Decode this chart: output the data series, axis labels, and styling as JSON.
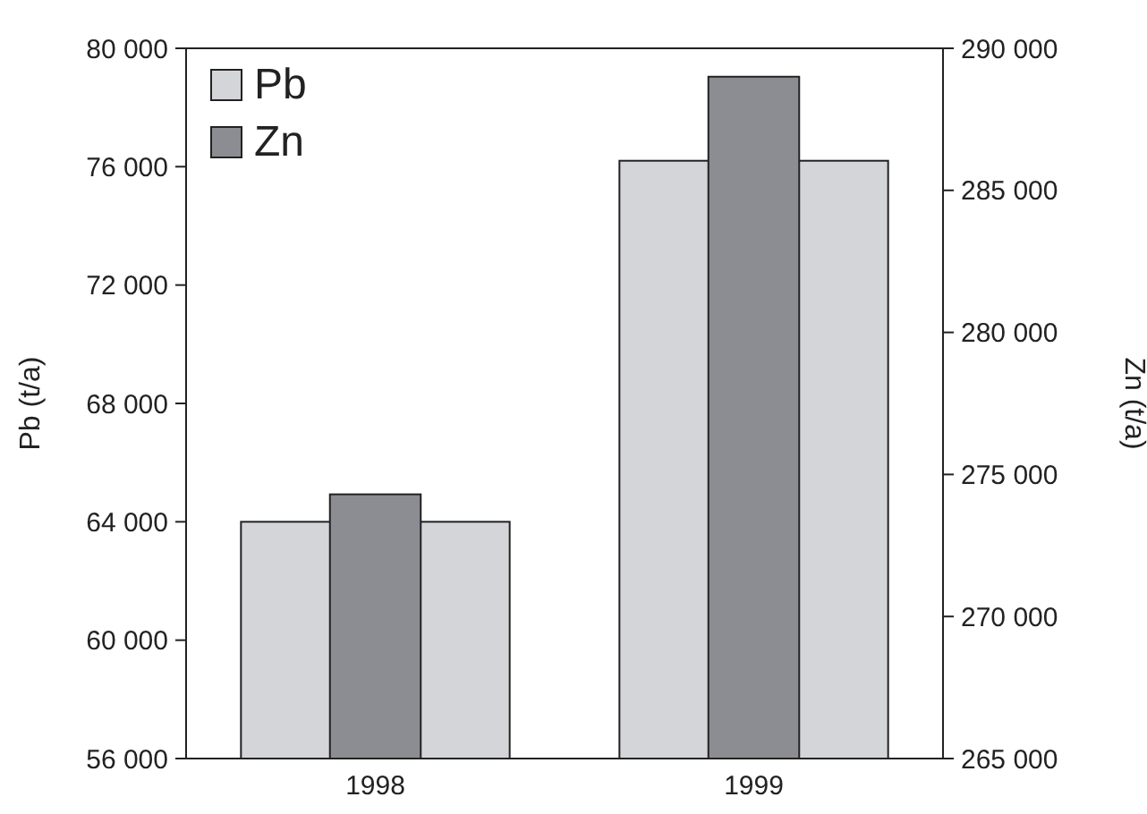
{
  "chart_data": {
    "type": "bar",
    "categories": [
      "1998",
      "1999"
    ],
    "series": [
      {
        "name": "Pb",
        "color": "#d4d5d9",
        "values": [
          64000,
          76200
        ]
      },
      {
        "name": "Zn",
        "color": "#8c8d92",
        "values": [
          274300,
          289000
        ],
        "axis": "y2"
      }
    ],
    "ylabel": "Pb (t/a)",
    "y2label": "Zn (t/a)",
    "ylim": [
      56000,
      80000
    ],
    "yticks": [
      {
        "value": 56000,
        "label": "56 000"
      },
      {
        "value": 60000,
        "label": "60 000"
      },
      {
        "value": 64000,
        "label": "64 000"
      },
      {
        "value": 68000,
        "label": "68 000"
      },
      {
        "value": 72000,
        "label": "72 000"
      },
      {
        "value": 76000,
        "label": "76 000"
      },
      {
        "value": 80000,
        "label": "80 000"
      }
    ],
    "y2lim": [
      265000,
      290000
    ],
    "y2ticks": [
      {
        "value": 265000,
        "label": "265 000"
      },
      {
        "value": 270000,
        "label": "270 000"
      },
      {
        "value": 275000,
        "label": "275 000"
      },
      {
        "value": 280000,
        "label": "280 000"
      },
      {
        "value": 285000,
        "label": "285 000"
      },
      {
        "value": 290000,
        "label": "290 000"
      }
    ],
    "legend": "top left",
    "grid": false
  }
}
